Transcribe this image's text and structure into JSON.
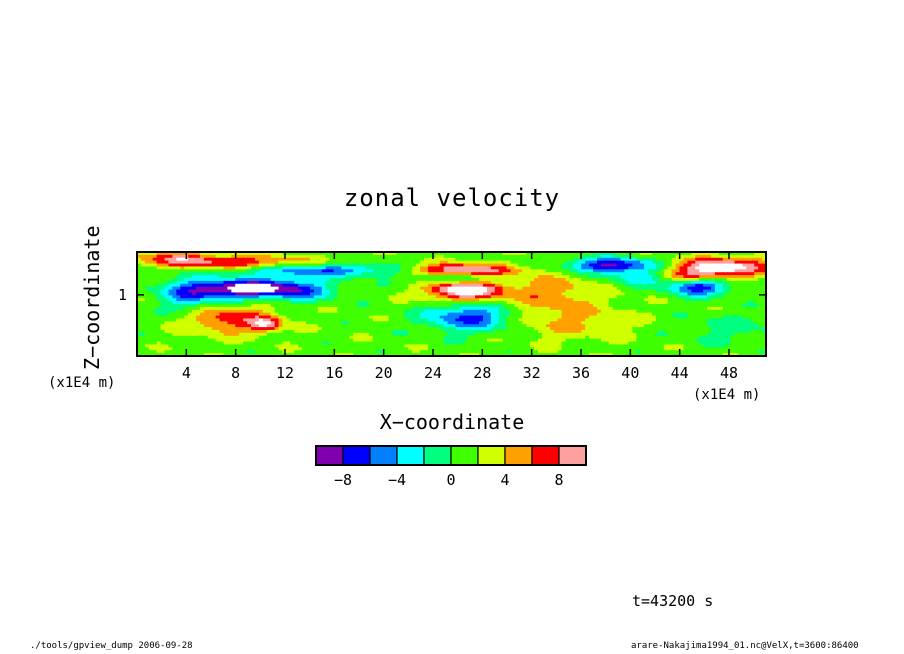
{
  "chart_data": {
    "type": "heatmap",
    "title": "zonal velocity",
    "xlabel": "X−coordinate",
    "ylabel": "Z−coordinate",
    "x_unit": "(x1E4 m)",
    "y_unit": "(x1E4 m)",
    "xlim": [
      0,
      51
    ],
    "ylim": [
      0.5,
      1.35
    ],
    "x_ticks": [
      4,
      8,
      12,
      16,
      20,
      24,
      28,
      32,
      36,
      40,
      44,
      48
    ],
    "x_tick_labels": [
      "4",
      "8",
      "12",
      "16",
      "20",
      "24",
      "28",
      "32",
      "36",
      "40",
      "44",
      "48"
    ],
    "y_ticks": [
      1
    ],
    "y_tick_labels": [
      "1"
    ],
    "colorbar": {
      "levels": [
        -10,
        -8,
        -6,
        -4,
        -2,
        0,
        2,
        4,
        6,
        8,
        10
      ],
      "colors": [
        "#8000b0",
        "#0000ff",
        "#0080ff",
        "#00ffff",
        "#00ff80",
        "#40ff00",
        "#d0ff00",
        "#ffa000",
        "#ff0000",
        "#ffa0a0"
      ],
      "tick_values": [
        -8,
        -4,
        0,
        4,
        8
      ],
      "tick_labels": [
        "−8",
        "−4",
        "0",
        "4",
        "8"
      ]
    },
    "features": [
      {
        "x": 9.5,
        "z": 1.05,
        "value": -12,
        "sx": 3.2,
        "sz": 0.025
      },
      {
        "x": 5.0,
        "z": 1.04,
        "value": -8,
        "sx": 3.0,
        "sz": 0.03
      },
      {
        "x": 13.5,
        "z": 1.04,
        "value": -6,
        "sx": 2.5,
        "sz": 0.03
      },
      {
        "x": 26.5,
        "z": 1.04,
        "value": 12,
        "sx": 3.0,
        "sz": 0.03
      },
      {
        "x": 27.0,
        "z": 0.82,
        "value": -8,
        "sx": 3.5,
        "sz": 0.04
      },
      {
        "x": 45.5,
        "z": 1.07,
        "value": -9,
        "sx": 2.5,
        "sz": 0.025
      },
      {
        "x": 47.5,
        "z": 1.23,
        "value": 10,
        "sx": 4.0,
        "sz": 0.025
      },
      {
        "x": 38.5,
        "z": 1.24,
        "value": -10,
        "sx": 3.5,
        "sz": 0.02
      },
      {
        "x": 26.0,
        "z": 1.2,
        "value": 10,
        "sx": 4.5,
        "sz": 0.018
      },
      {
        "x": 26.0,
        "z": 1.13,
        "value": -6,
        "sx": 3.5,
        "sz": 0.018
      },
      {
        "x": 15.0,
        "z": 1.2,
        "value": -7,
        "sx": 8.0,
        "sz": 0.018
      },
      {
        "x": 8.0,
        "z": 1.26,
        "value": 7,
        "sx": 6.0,
        "sz": 0.02
      },
      {
        "x": 7.5,
        "z": 0.8,
        "value": 6,
        "sx": 3.5,
        "sz": 0.04
      },
      {
        "x": 10.5,
        "z": 0.76,
        "value": 7,
        "sx": 1.2,
        "sz": 0.02
      },
      {
        "x": 4.0,
        "z": 0.92,
        "value": -3,
        "sx": 2.0,
        "sz": 0.03
      },
      {
        "x": 35.0,
        "z": 0.78,
        "value": 3,
        "sx": 5.0,
        "sz": 0.05
      },
      {
        "x": 3.0,
        "z": 1.3,
        "value": 5,
        "sx": 3.0,
        "sz": 0.02
      },
      {
        "x": 33.5,
        "z": 1.02,
        "value": 4,
        "sx": 4.0,
        "sz": 0.05
      },
      {
        "x": 48.0,
        "z": 0.72,
        "value": -2,
        "sx": 4.0,
        "sz": 0.04
      },
      {
        "x": 45.0,
        "z": 1.15,
        "value": 6,
        "sx": 3.0,
        "sz": 0.02
      },
      {
        "x": 41.0,
        "z": 1.14,
        "value": -5,
        "sx": 2.5,
        "sz": 0.02
      }
    ]
  },
  "annotations": {
    "time": "t=43200 s",
    "footer_left": "./tools/gpview_dump  2006-09-28",
    "footer_right": "arare-Nakajima1994_01.nc@VelX,t=3600:86400"
  }
}
